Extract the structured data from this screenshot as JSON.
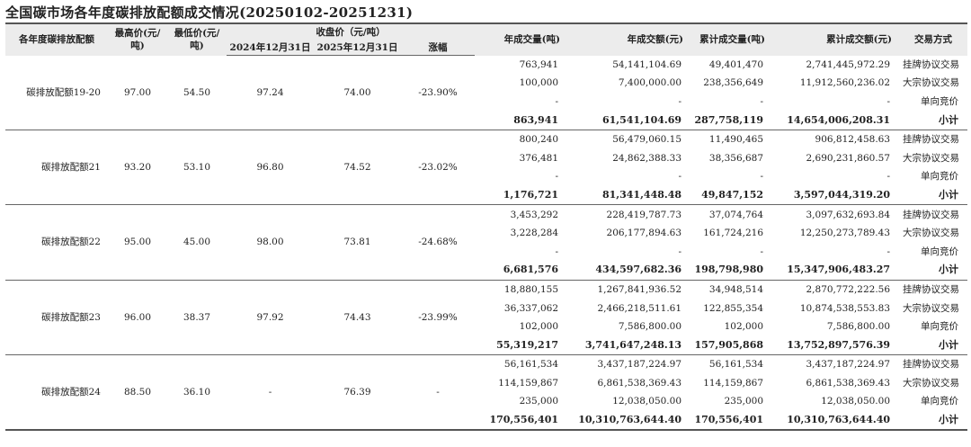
{
  "title": "全国碳市场各年度碳排放配额成交情况(20250102-20251231)",
  "headers": {
    "vintage": "各年度碳排放配额",
    "max_price": "最高价(元/吨)",
    "min_price": "最低价(元/吨)",
    "close_price": "收盘价（元/吨）",
    "close_2024": "2024年12月31日",
    "close_2025": "2025年12月31日",
    "change": "涨幅",
    "annual_volume": "年成交量(吨)",
    "annual_value": "年成交额(元)",
    "cum_volume": "累计成交量(吨)",
    "cum_value": "累计成交额(元)",
    "mode": "交易方式"
  },
  "groups": [
    {
      "name": "碳排放配额19-20",
      "max": "97.00",
      "min": "54.50",
      "close2024": "97.24",
      "close2025": "74.00",
      "change": "-23.90%",
      "rows": [
        {
          "av": "763,941",
          "aa": "54,141,104.69",
          "cv": "49,401,470",
          "ca": "2,741,445,972.29",
          "mode": "挂牌协议交易"
        },
        {
          "av": "100,000",
          "aa": "7,400,000.00",
          "cv": "238,356,649",
          "ca": "11,912,560,236.02",
          "mode": "大宗协议交易"
        },
        {
          "av": "-",
          "aa": "-",
          "cv": "-",
          "ca": "-",
          "mode": "单向竞价"
        },
        {
          "av": "863,941",
          "aa": "61,541,104.69",
          "cv": "287,758,119",
          "ca": "14,654,006,208.31",
          "mode": "小计"
        }
      ]
    },
    {
      "name": "碳排放配额21",
      "max": "93.20",
      "min": "53.10",
      "close2024": "96.80",
      "close2025": "74.52",
      "change": "-23.02%",
      "rows": [
        {
          "av": "800,240",
          "aa": "56,479,060.15",
          "cv": "11,490,465",
          "ca": "906,812,458.63",
          "mode": "挂牌协议交易"
        },
        {
          "av": "376,481",
          "aa": "24,862,388.33",
          "cv": "38,356,687",
          "ca": "2,690,231,860.57",
          "mode": "大宗协议交易"
        },
        {
          "av": "-",
          "aa": "-",
          "cv": "-",
          "ca": "-",
          "mode": "单向竞价"
        },
        {
          "av": "1,176,721",
          "aa": "81,341,448.48",
          "cv": "49,847,152",
          "ca": "3,597,044,319.20",
          "mode": "小计"
        }
      ]
    },
    {
      "name": "碳排放配额22",
      "max": "95.00",
      "min": "45.00",
      "close2024": "98.00",
      "close2025": "73.81",
      "change": "-24.68%",
      "rows": [
        {
          "av": "3,453,292",
          "aa": "228,419,787.73",
          "cv": "37,074,764",
          "ca": "3,097,632,693.84",
          "mode": "挂牌协议交易"
        },
        {
          "av": "3,228,284",
          "aa": "206,177,894.63",
          "cv": "161,724,216",
          "ca": "12,250,273,789.43",
          "mode": "大宗协议交易"
        },
        {
          "av": "-",
          "aa": "-",
          "cv": "-",
          "ca": "-",
          "mode": "单向竞价"
        },
        {
          "av": "6,681,576",
          "aa": "434,597,682.36",
          "cv": "198,798,980",
          "ca": "15,347,906,483.27",
          "mode": "小计"
        }
      ]
    },
    {
      "name": "碳排放配额23",
      "max": "96.00",
      "min": "38.37",
      "close2024": "97.92",
      "close2025": "74.43",
      "change": "-23.99%",
      "rows": [
        {
          "av": "18,880,155",
          "aa": "1,267,841,936.52",
          "cv": "34,948,514",
          "ca": "2,870,772,222.56",
          "mode": "挂牌协议交易"
        },
        {
          "av": "36,337,062",
          "aa": "2,466,218,511.61",
          "cv": "122,855,354",
          "ca": "10,874,538,553.83",
          "mode": "大宗协议交易"
        },
        {
          "av": "102,000",
          "aa": "7,586,800.00",
          "cv": "102,000",
          "ca": "7,586,800.00",
          "mode": "单向竞价"
        },
        {
          "av": "55,319,217",
          "aa": "3,741,647,248.13",
          "cv": "157,905,868",
          "ca": "13,752,897,576.39",
          "mode": "小计"
        }
      ]
    },
    {
      "name": "碳排放配额24",
      "max": "88.50",
      "min": "36.10",
      "close2024": "-",
      "close2025": "76.39",
      "change": "-",
      "rows": [
        {
          "av": "56,161,534",
          "aa": "3,437,187,224.97",
          "cv": "56,161,534",
          "ca": "3,437,187,224.97",
          "mode": "挂牌协议交易"
        },
        {
          "av": "114,159,867",
          "aa": "6,861,538,369.43",
          "cv": "114,159,867",
          "ca": "6,861,538,369.43",
          "mode": "大宗协议交易"
        },
        {
          "av": "235,000",
          "aa": "12,038,050.00",
          "cv": "235,000",
          "ca": "12,038,050.00",
          "mode": "单向竞价"
        },
        {
          "av": "170,556,401",
          "aa": "10,310,763,644.40",
          "cv": "170,556,401",
          "ca": "10,310,763,644.40",
          "mode": "小计"
        }
      ]
    }
  ]
}
